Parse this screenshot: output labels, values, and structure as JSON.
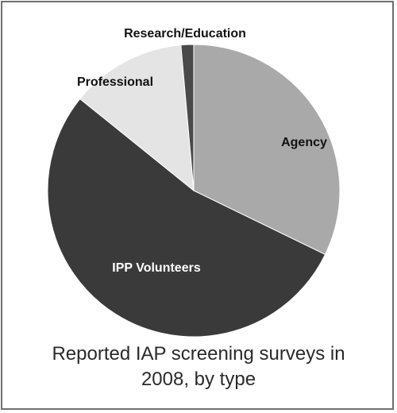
{
  "chart_data": {
    "type": "pie",
    "title": "Reported IAP screening surveys in 2008, by type",
    "slices": [
      {
        "label": "Agency",
        "value": 32.2,
        "color": "#a9a9a9",
        "label_color": "#111111"
      },
      {
        "label": "IPP Volunteers",
        "value": 53.6,
        "color": "#3a3a3a",
        "label_color": "#ffffff"
      },
      {
        "label": "Professional",
        "value": 12.8,
        "color": "#e4e4e4",
        "label_color": "#111111"
      },
      {
        "label": "Research/Education",
        "value": 1.4,
        "color": "#4a4a4a",
        "label_color": "#111111"
      }
    ]
  }
}
